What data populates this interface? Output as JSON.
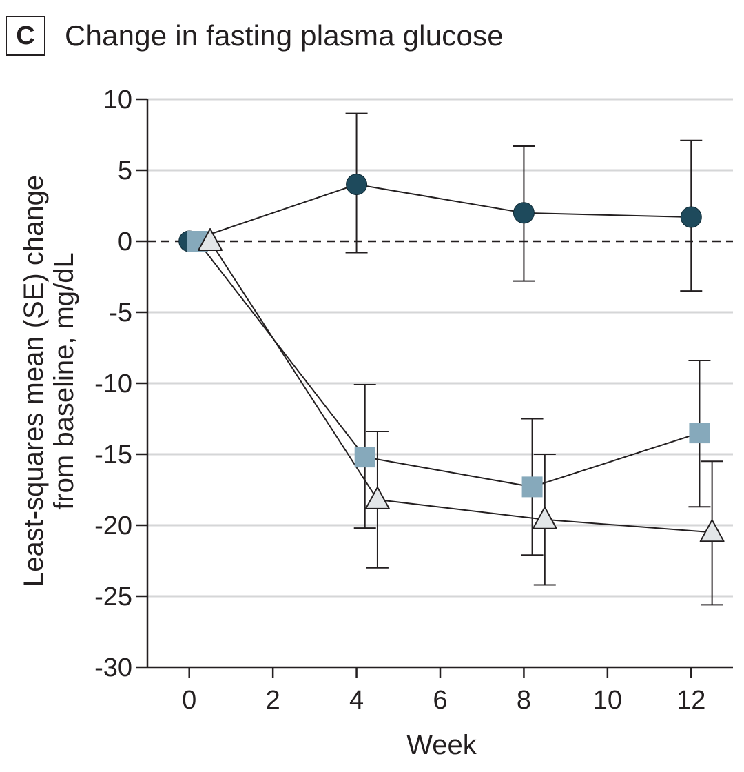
{
  "panel": {
    "letter": "C",
    "title": "Change in fasting plasma glucose"
  },
  "chart_data": {
    "type": "line",
    "title": "Change in fasting plasma glucose",
    "xlabel": "Week",
    "ylabel": [
      "Least-squares mean (SE) change",
      "from baseline, mg/dL"
    ],
    "xlim": [
      -1,
      13
    ],
    "ylim": [
      -30,
      10
    ],
    "xticks": [
      0,
      2,
      4,
      6,
      8,
      10,
      12
    ],
    "xtick_labels": [
      "0",
      "2",
      "4",
      "6",
      "8",
      "10",
      "12"
    ],
    "yticks": [
      10,
      5,
      0,
      -5,
      -10,
      -15,
      -20,
      -25,
      -30
    ],
    "ytick_labels": [
      "10",
      "5",
      "0",
      "-5",
      "-10",
      "-15",
      "-20",
      "-25",
      "-30"
    ],
    "grid": "horizontal",
    "reference_line": 0,
    "series": [
      {
        "marker": "circle",
        "color": "#1e4a5c",
        "x": [
          0,
          4,
          8,
          12
        ],
        "y": [
          0,
          4.0,
          2.0,
          1.7
        ],
        "se_low": [
          null,
          -0.8,
          -2.8,
          -3.5
        ],
        "se_high": [
          null,
          9.0,
          6.7,
          7.1
        ]
      },
      {
        "marker": "square",
        "color": "#86a9bb",
        "x": [
          0.2,
          4.2,
          8.2,
          12.2
        ],
        "y": [
          0,
          -15.2,
          -17.3,
          -13.5
        ],
        "se_low": [
          null,
          -20.2,
          -22.1,
          -18.7
        ],
        "se_high": [
          null,
          -10.1,
          -12.5,
          -8.4
        ]
      },
      {
        "marker": "triangle",
        "color": "#e3e6e8",
        "x": [
          0.5,
          4.5,
          8.5,
          12.5
        ],
        "y": [
          0,
          -18.2,
          -19.6,
          -20.5
        ],
        "se_low": [
          null,
          -23.0,
          -24.2,
          -25.6
        ],
        "se_high": [
          null,
          -13.4,
          -15.0,
          -15.5
        ]
      }
    ]
  }
}
